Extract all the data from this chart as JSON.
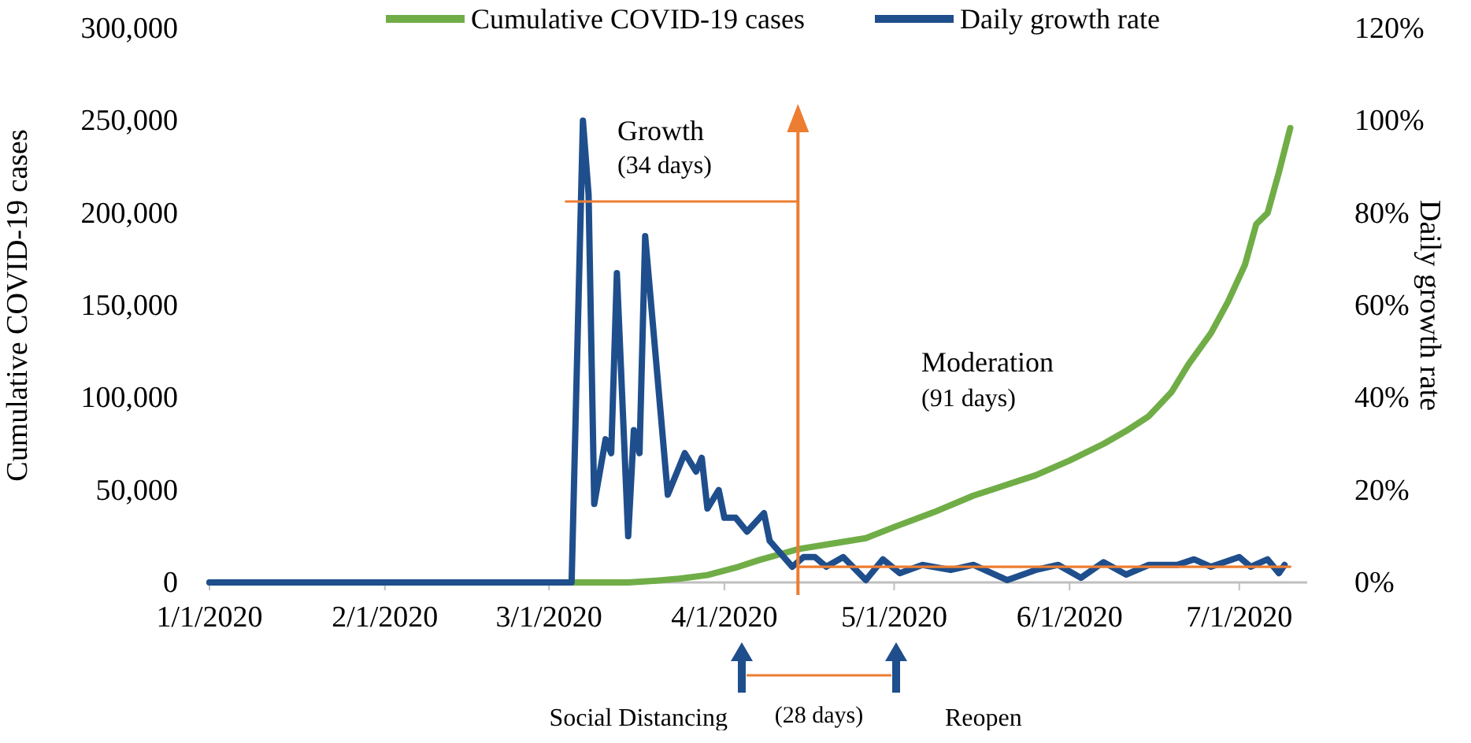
{
  "chart_data": {
    "type": "line",
    "ylabel": "Cumulative COVID-19 cases",
    "y2label": "Daily growth rate",
    "xlim": [
      "2020-01-01",
      "2020-07-13"
    ],
    "xticks": [
      {
        "value": "2020-01-01",
        "label": "1/1/2020"
      },
      {
        "value": "2020-02-01",
        "label": "2/1/2020"
      },
      {
        "value": "2020-03-01",
        "label": "3/1/2020"
      },
      {
        "value": "2020-04-01",
        "label": "4/1/2020"
      },
      {
        "value": "2020-05-01",
        "label": "5/1/2020"
      },
      {
        "value": "2020-06-01",
        "label": "6/1/2020"
      },
      {
        "value": "2020-07-01",
        "label": "7/1/2020"
      }
    ],
    "ylim": [
      0,
      300000
    ],
    "yticks": [
      {
        "value": 0,
        "label": "0"
      },
      {
        "value": 50000,
        "label": "50,000"
      },
      {
        "value": 100000,
        "label": "100,000"
      },
      {
        "value": 150000,
        "label": "150,000"
      },
      {
        "value": 200000,
        "label": "200,000"
      },
      {
        "value": 250000,
        "label": "250,000"
      },
      {
        "value": 300000,
        "label": "300,000"
      }
    ],
    "y2lim": [
      0,
      120
    ],
    "y2ticks": [
      {
        "value": 0,
        "label": "0%"
      },
      {
        "value": 20,
        "label": "20%"
      },
      {
        "value": 40,
        "label": "40%"
      },
      {
        "value": 60,
        "label": "60%"
      },
      {
        "value": 80,
        "label": "80%"
      },
      {
        "value": 100,
        "label": "100%"
      },
      {
        "value": 120,
        "label": "120%"
      }
    ],
    "grid": false,
    "legend": "top",
    "marker": "none",
    "line_style": "solid",
    "series": [
      {
        "name": "Cumulative COVID-19 cases",
        "color": "#70ad47",
        "x": [
          "2020-01-01",
          "2020-03-01",
          "2020-03-10",
          "2020-03-15",
          "2020-03-20",
          "2020-03-24",
          "2020-03-29",
          "2020-04-03",
          "2020-04-07",
          "2020-04-14",
          "2020-04-20",
          "2020-04-26",
          "2020-05-01",
          "2020-05-08",
          "2020-05-15",
          "2020-05-20",
          "2020-05-26",
          "2020-06-01",
          "2020-06-07",
          "2020-06-11",
          "2020-06-15",
          "2020-06-19",
          "2020-06-22",
          "2020-06-26",
          "2020-06-29",
          "2020-07-02",
          "2020-07-04",
          "2020-07-06",
          "2020-07-08",
          "2020-07-10"
        ],
        "values": [
          0,
          0,
          0,
          0,
          1000,
          2000,
          4000,
          8000,
          12000,
          18000,
          21000,
          24000,
          30000,
          38000,
          47000,
          52000,
          58000,
          66000,
          75000,
          82000,
          90000,
          103000,
          118000,
          135000,
          152000,
          172000,
          194000,
          200000,
          222000,
          246000
        ]
      },
      {
        "name": "Daily growth rate",
        "color": "#1f4e8c",
        "axis": "y2",
        "x": [
          "2020-01-01",
          "2020-03-05",
          "2020-03-07",
          "2020-03-08",
          "2020-03-09",
          "2020-03-11",
          "2020-03-12",
          "2020-03-13",
          "2020-03-15",
          "2020-03-16",
          "2020-03-17",
          "2020-03-18",
          "2020-03-22",
          "2020-03-25",
          "2020-03-27",
          "2020-03-28",
          "2020-03-29",
          "2020-03-31",
          "2020-04-01",
          "2020-04-03",
          "2020-04-05",
          "2020-04-08",
          "2020-04-09",
          "2020-04-13",
          "2020-04-15",
          "2020-04-17",
          "2020-04-19",
          "2020-04-22",
          "2020-04-26",
          "2020-04-29",
          "2020-05-02",
          "2020-05-06",
          "2020-05-11",
          "2020-05-15",
          "2020-05-21",
          "2020-05-26",
          "2020-05-30",
          "2020-06-03",
          "2020-06-07",
          "2020-06-11",
          "2020-06-15",
          "2020-06-20",
          "2020-06-23",
          "2020-06-26",
          "2020-07-01",
          "2020-07-03",
          "2020-07-06",
          "2020-07-08",
          "2020-07-09"
        ],
        "values": [
          0,
          0,
          100,
          84,
          17,
          31,
          28,
          67,
          10,
          33,
          28,
          75,
          19,
          28,
          24,
          27,
          16,
          20,
          14,
          14,
          11,
          15,
          9,
          3.4,
          5.5,
          5.5,
          3.4,
          5.5,
          0.5,
          5,
          2,
          3.8,
          2.7,
          3.8,
          0.5,
          2.7,
          3.8,
          1,
          4.4,
          1.7,
          3.8,
          3.8,
          5,
          3.4,
          5.5,
          3.4,
          5,
          2,
          3.8
        ]
      },
      {
        "color": "#ed7d31",
        "axis": "y2",
        "x": [
          "2020-03-04",
          "2020-04-14"
        ],
        "values": [
          82.5,
          82.5
        ]
      },
      {
        "color": "#ed7d31",
        "axis": "y2",
        "x": [
          "2020-04-14",
          "2020-07-10"
        ],
        "values": [
          3.4,
          3.4
        ]
      }
    ],
    "ref_lines": [
      {
        "axis": "x",
        "value": "2020-04-14",
        "label": null,
        "color": "#ed7d31"
      }
    ],
    "annotations": [
      "Growth",
      "(34 days)",
      "Moderation",
      "(91 days)",
      "Social Distancing",
      "(28 days)",
      "Reopen"
    ]
  }
}
